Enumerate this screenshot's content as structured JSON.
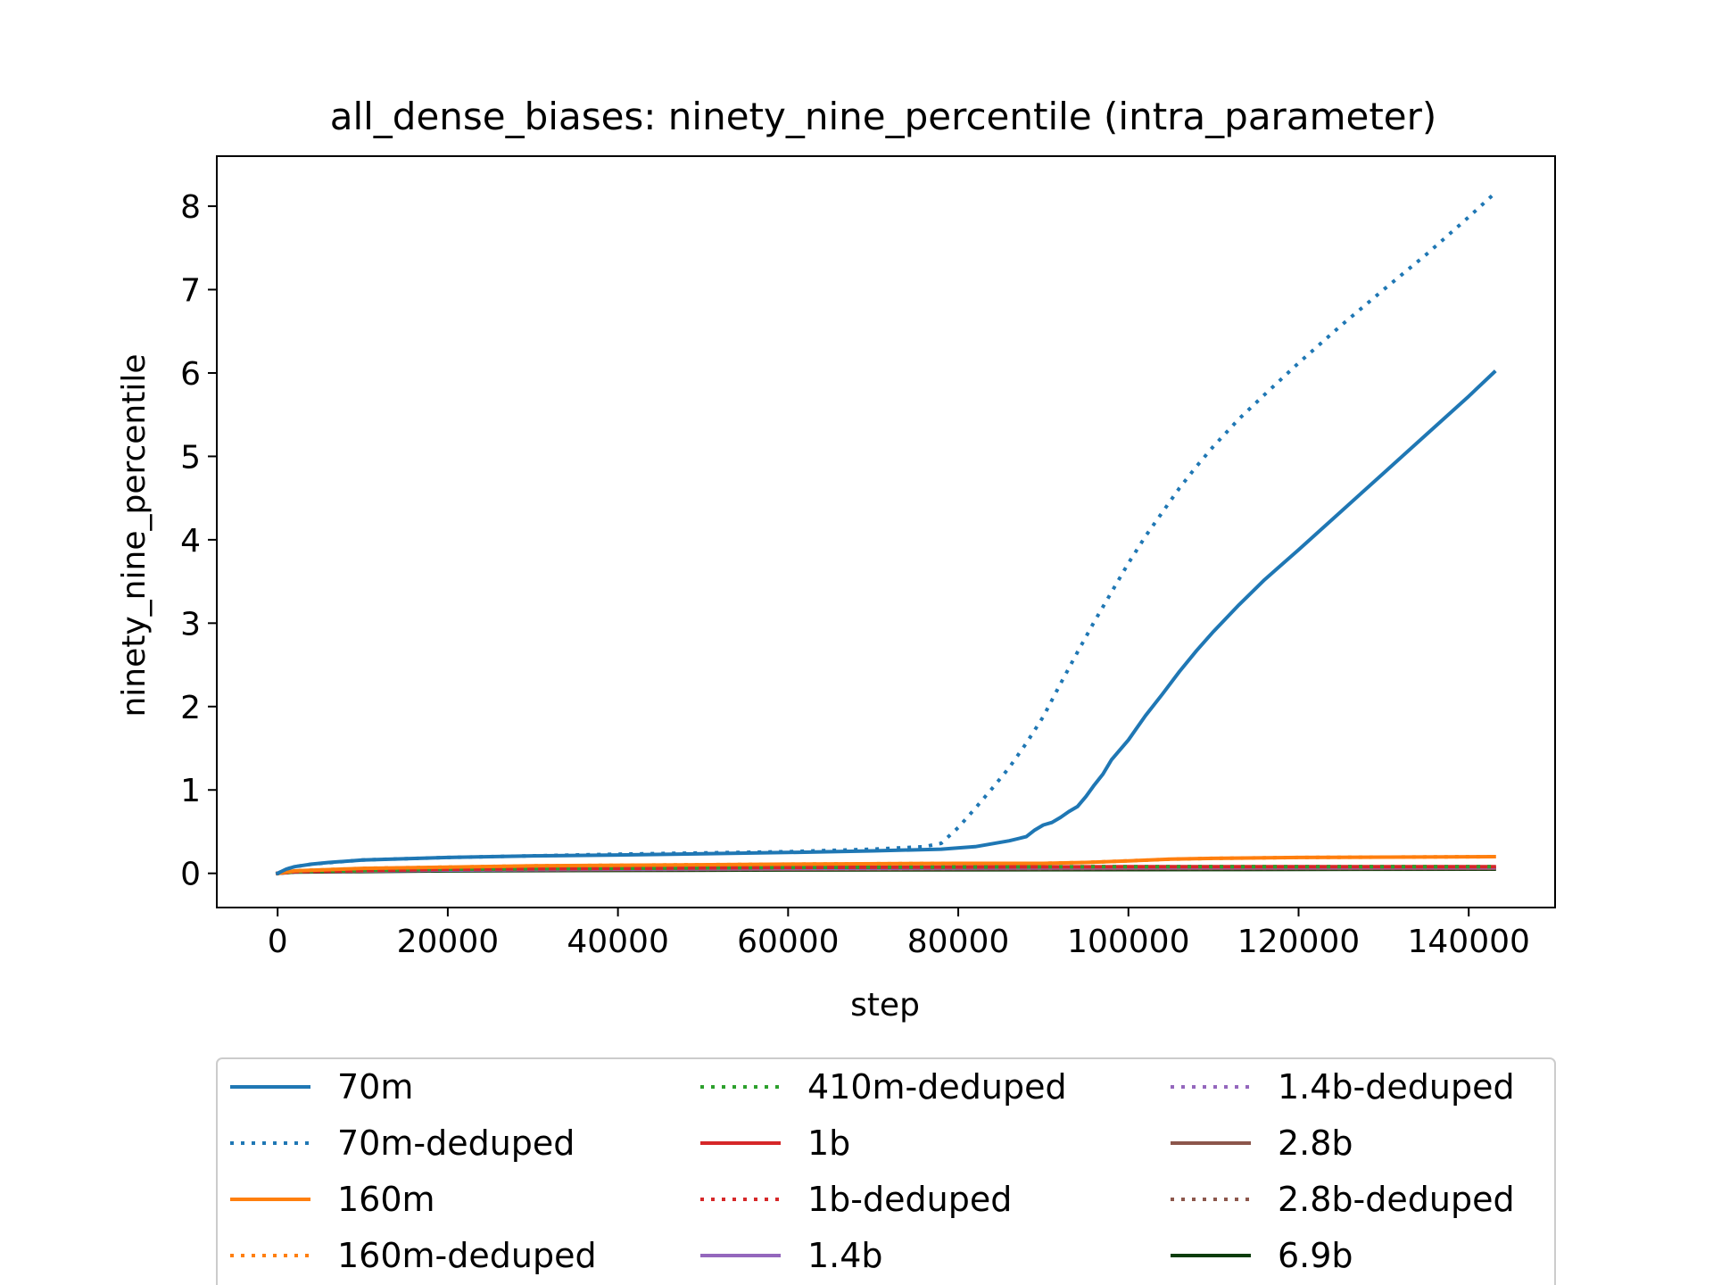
{
  "chart_data": {
    "type": "line",
    "title": "all_dense_biases: ninety_nine_percentile (intra_parameter)",
    "xlabel": "step",
    "ylabel": "ninety_nine_percentile",
    "xlim": [
      -7150,
      150150
    ],
    "ylim": [
      -0.41,
      8.6
    ],
    "xticks": [
      0,
      20000,
      40000,
      60000,
      80000,
      100000,
      120000,
      140000
    ],
    "yticks": [
      0,
      1,
      2,
      3,
      4,
      5,
      6,
      7,
      8
    ],
    "grid": false,
    "legend_position": "below plot",
    "legend_columns": 3,
    "series": [
      {
        "name": "70m",
        "color": "#1f77b4",
        "dash": "solid",
        "x": [
          0,
          1000,
          2000,
          4000,
          6000,
          10000,
          20000,
          30000,
          40000,
          50000,
          60000,
          70000,
          78000,
          82000,
          86000,
          88000,
          89000,
          90000,
          91000,
          92000,
          93000,
          94000,
          95000,
          96000,
          97000,
          98000,
          100000,
          102000,
          104000,
          106000,
          108000,
          110000,
          113000,
          116000,
          120000,
          125000,
          130000,
          135000,
          140000,
          143000
        ],
        "y": [
          0.0,
          0.05,
          0.08,
          0.11,
          0.13,
          0.16,
          0.19,
          0.21,
          0.22,
          0.235,
          0.25,
          0.27,
          0.29,
          0.32,
          0.39,
          0.44,
          0.52,
          0.58,
          0.61,
          0.67,
          0.74,
          0.8,
          0.92,
          1.06,
          1.19,
          1.36,
          1.6,
          1.89,
          2.15,
          2.42,
          2.67,
          2.9,
          3.22,
          3.52,
          3.88,
          4.34,
          4.8,
          5.26,
          5.72,
          6.01
        ]
      },
      {
        "name": "70m-deduped",
        "color": "#1f77b4",
        "dash": "dotted",
        "x": [
          0,
          1000,
          2000,
          4000,
          10000,
          20000,
          40000,
          60000,
          70000,
          76000,
          78000,
          80000,
          82000,
          84000,
          86000,
          88000,
          90000,
          92000,
          94000,
          96000,
          98000,
          100000,
          102000,
          104000,
          106000,
          108000,
          110000,
          113000,
          116000,
          120000,
          125000,
          130000,
          135000,
          140000,
          143000
        ],
        "y": [
          0.0,
          0.05,
          0.08,
          0.11,
          0.16,
          0.19,
          0.23,
          0.26,
          0.29,
          0.32,
          0.36,
          0.55,
          0.78,
          1.02,
          1.27,
          1.56,
          1.88,
          2.27,
          2.65,
          3.02,
          3.37,
          3.72,
          4.04,
          4.33,
          4.62,
          4.88,
          5.12,
          5.45,
          5.74,
          6.12,
          6.57,
          7.0,
          7.42,
          7.87,
          8.15
        ]
      },
      {
        "name": "160m",
        "color": "#ff7f0e",
        "dash": "solid",
        "x": [
          0,
          2000,
          10000,
          30000,
          60000,
          80000,
          90000,
          95000,
          100000,
          105000,
          110000,
          120000,
          143000
        ],
        "y": [
          0.0,
          0.03,
          0.06,
          0.09,
          0.11,
          0.12,
          0.12,
          0.13,
          0.15,
          0.17,
          0.18,
          0.19,
          0.2
        ]
      },
      {
        "name": "160m-deduped",
        "color": "#ff7f0e",
        "dash": "dotted",
        "x": [
          0,
          2000,
          10000,
          30000,
          60000,
          80000,
          90000,
          95000,
          100000,
          105000,
          110000,
          120000,
          143000
        ],
        "y": [
          0.0,
          0.03,
          0.06,
          0.09,
          0.11,
          0.12,
          0.12,
          0.13,
          0.15,
          0.17,
          0.18,
          0.19,
          0.2
        ]
      },
      {
        "name": "410m-deduped",
        "color": "#2ca02c",
        "dash": "dotted",
        "x": [
          0,
          2000,
          20000,
          60000,
          100000,
          143000
        ],
        "y": [
          0.0,
          0.02,
          0.05,
          0.07,
          0.08,
          0.08
        ]
      },
      {
        "name": "1b",
        "color": "#d62728",
        "dash": "solid",
        "x": [
          0,
          2000,
          20000,
          60000,
          100000,
          143000
        ],
        "y": [
          0.0,
          0.02,
          0.05,
          0.07,
          0.08,
          0.08
        ]
      },
      {
        "name": "1b-deduped",
        "color": "#d62728",
        "dash": "dotted",
        "x": [
          0,
          2000,
          20000,
          60000,
          100000,
          143000
        ],
        "y": [
          0.0,
          0.02,
          0.05,
          0.07,
          0.08,
          0.08
        ]
      },
      {
        "name": "1.4b",
        "color": "#9467bd",
        "dash": "solid",
        "x": [
          0,
          2000,
          20000,
          60000,
          100000,
          143000
        ],
        "y": [
          0.0,
          0.02,
          0.04,
          0.06,
          0.07,
          0.07
        ]
      },
      {
        "name": "1.4b-deduped",
        "color": "#9467bd",
        "dash": "dotted",
        "x": [
          0,
          2000,
          20000,
          60000,
          100000,
          143000
        ],
        "y": [
          0.0,
          0.02,
          0.04,
          0.06,
          0.07,
          0.07
        ]
      },
      {
        "name": "2.8b",
        "color": "#8c564b",
        "dash": "solid",
        "x": [
          0,
          2000,
          20000,
          60000,
          100000,
          143000
        ],
        "y": [
          0.0,
          0.02,
          0.04,
          0.05,
          0.06,
          0.06
        ]
      },
      {
        "name": "2.8b-deduped",
        "color": "#8c564b",
        "dash": "dotted",
        "x": [
          0,
          2000,
          20000,
          60000,
          100000,
          143000
        ],
        "y": [
          0.0,
          0.02,
          0.04,
          0.05,
          0.06,
          0.06
        ]
      },
      {
        "name": "6.9b",
        "color": "#0b3d0b",
        "dash": "solid",
        "x": [
          0,
          2000,
          20000,
          60000,
          100000,
          143000
        ],
        "y": [
          0.0,
          0.015,
          0.03,
          0.04,
          0.045,
          0.05
        ]
      }
    ]
  }
}
